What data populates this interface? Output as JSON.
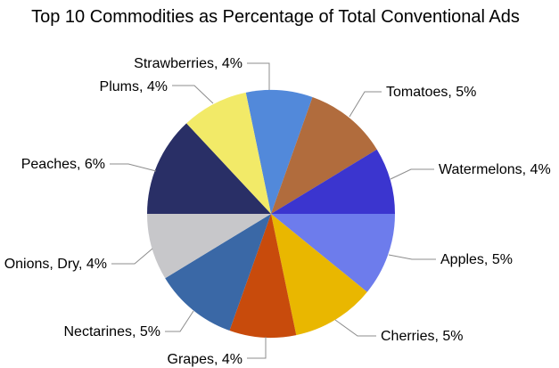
{
  "title": "Top 10 Commodities as Percentage of Total Conventional Ads",
  "colors": {
    "background": "#ffffff",
    "leader_line": "#8c8c8c",
    "label_text": "#000000",
    "title_text": "#000000"
  },
  "chart_data": {
    "type": "pie",
    "title": "Top 10 Commodities as Percentage of Total Conventional Ads",
    "unit": "% of total conventional ads",
    "legend_position": "none",
    "data_labels": "outside with leader lines, format '{name}, {value}%'",
    "direction": "clockwise",
    "start_angle_deg": -11.74,
    "values_sum": 46,
    "slices": [
      {
        "label": "Strawberries",
        "value": 4,
        "display": "Strawberries, 4%",
        "color": "#5289da"
      },
      {
        "label": "Tomatoes",
        "value": 5,
        "display": "Tomatoes, 5%",
        "color": "#b16c3d"
      },
      {
        "label": "Watermelons",
        "value": 4,
        "display": "Watermelons, 4%",
        "color": "#3b35cf"
      },
      {
        "label": "Apples",
        "value": 5,
        "display": "Apples, 5%",
        "color": "#6d7cec"
      },
      {
        "label": "Cherries",
        "value": 5,
        "display": "Cherries, 5%",
        "color": "#e9b700"
      },
      {
        "label": "Grapes",
        "value": 4,
        "display": "Grapes, 4%",
        "color": "#c84b0c"
      },
      {
        "label": "Nectarines",
        "value": 5,
        "display": "Nectarines, 5%",
        "color": "#3a68a6"
      },
      {
        "label": "Onions, Dry",
        "value": 4,
        "display": "Onions, Dry, 4%",
        "color": "#c7c7ca"
      },
      {
        "label": "Peaches",
        "value": 6,
        "display": "Peaches, 6%",
        "color": "#292f66"
      },
      {
        "label": "Plums",
        "value": 4,
        "display": "Plums, 4%",
        "color": "#f2ea68"
      }
    ]
  }
}
